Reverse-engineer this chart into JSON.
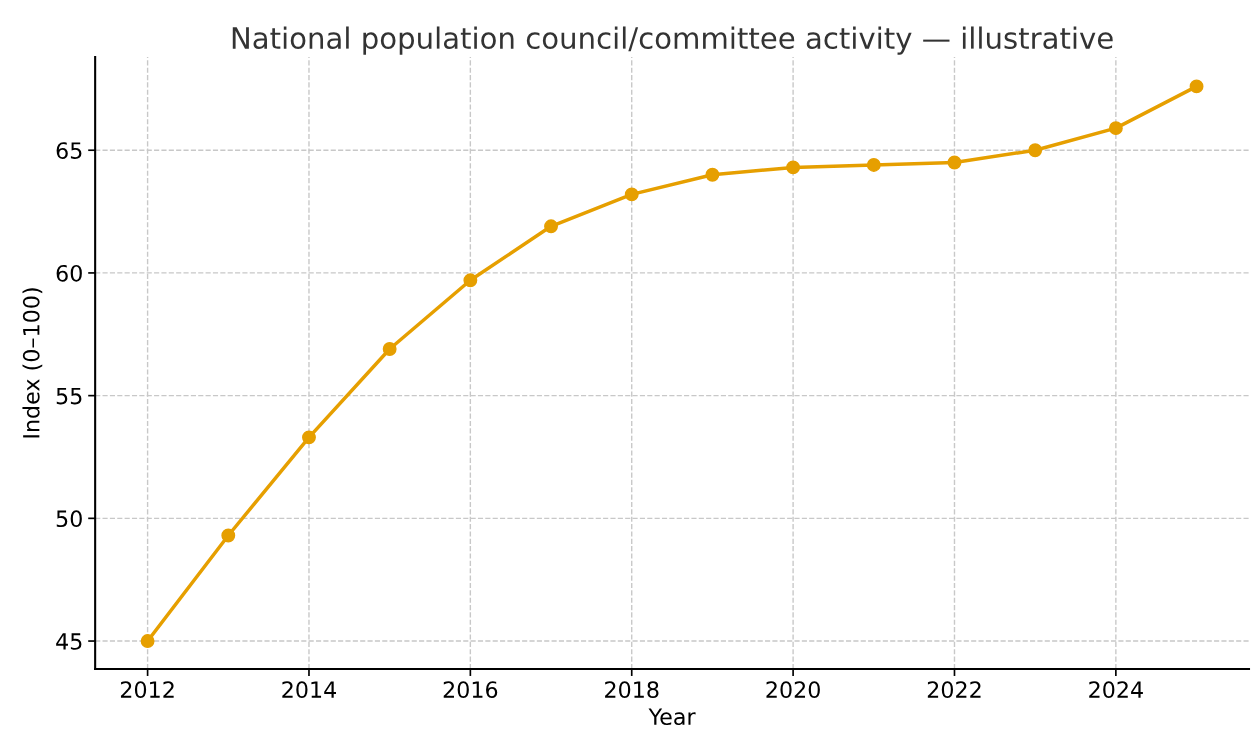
{
  "chart_data": {
    "type": "line",
    "title": "National population council/committee activity — illustrative",
    "xlabel": "Year",
    "ylabel": "Index (0–100)",
    "x": [
      2012,
      2013,
      2014,
      2015,
      2016,
      2017,
      2018,
      2019,
      2020,
      2021,
      2022,
      2023,
      2024,
      2025
    ],
    "series": [
      {
        "color": "#e69f00",
        "values": [
          45.0,
          49.3,
          53.3,
          56.9,
          59.7,
          61.9,
          63.2,
          64.0,
          64.3,
          64.4,
          64.5,
          65.0,
          65.9,
          67.6
        ]
      }
    ],
    "xlim": [
      2011.35,
      2025.65
    ],
    "xticks": [
      2012,
      2014,
      2016,
      2018,
      2020,
      2022,
      2024
    ],
    "ylim": [
      43.86,
      68.8
    ],
    "yticks": [
      45,
      50,
      55,
      60,
      65
    ],
    "grid": true,
    "marker": "circle",
    "line_style": "solid"
  }
}
